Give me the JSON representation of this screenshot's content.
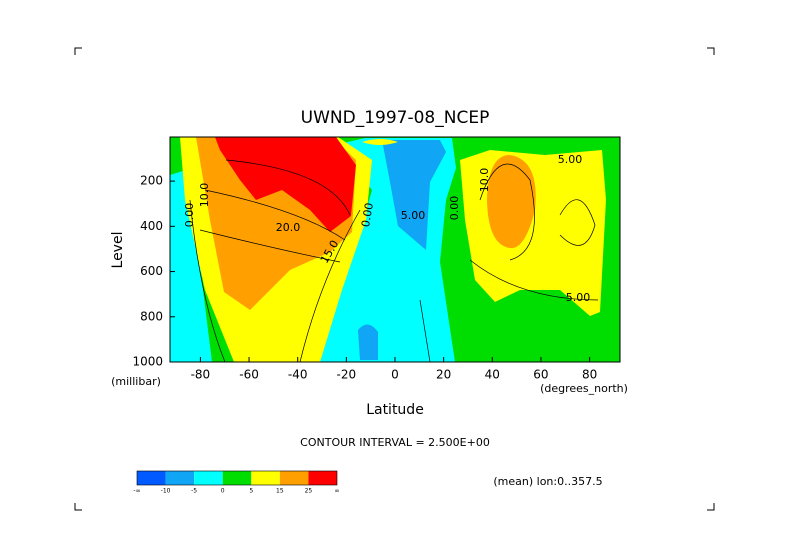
{
  "chart_data": {
    "type": "contour",
    "title": "UWND_1997-08_NCEP",
    "x_label": "Latitude",
    "x_units": "(degrees_north)",
    "y_label": "Level",
    "y_units": "(millibar)",
    "xlim": [
      -92.5,
      92.5
    ],
    "xticks": [
      -80,
      -60,
      -40,
      -20,
      0,
      20,
      40,
      60,
      80
    ],
    "ylim": [
      1000,
      5
    ],
    "yticks": [
      200,
      400,
      600,
      800,
      1000
    ],
    "contour_interval_note": "CONTOUR INTERVAL = 2.500E+00",
    "region_note": "(mean) lon:0..357.5",
    "contour_labels": [
      "20.0",
      "5.00",
      "5.00",
      "5.00",
      "10.0",
      "0.00",
      "0.00",
      "10.0",
      "15.0",
      "0.00"
    ],
    "colorbar": {
      "labels": [
        "-∞",
        "-10",
        "-5",
        "0",
        "5",
        "15",
        "25",
        "∞"
      ],
      "colors": [
        "#005aff",
        "#10a5f5",
        "#00ffff",
        "#00dd00",
        "#ffff00",
        "#ffa000",
        "#ff0000"
      ]
    }
  }
}
